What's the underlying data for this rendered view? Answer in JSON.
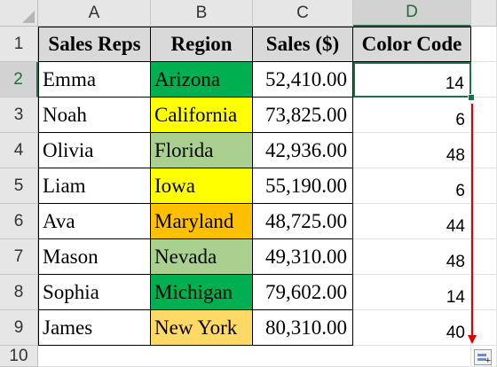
{
  "columns": [
    "A",
    "B",
    "C",
    "D"
  ],
  "rows": [
    "1",
    "2",
    "3",
    "4",
    "5",
    "6",
    "7",
    "8",
    "9",
    "10"
  ],
  "headers": [
    "Sales Reps",
    "Region",
    "Sales ($)",
    "Color Code"
  ],
  "records": [
    {
      "rep": "Emma",
      "region": "Arizona",
      "sales": "52,410.00",
      "code": "14",
      "color": "#00b050"
    },
    {
      "rep": "Noah",
      "region": "California",
      "sales": "73,825.00",
      "code": "6",
      "color": "#ffff00"
    },
    {
      "rep": "Olivia",
      "region": "Florida",
      "sales": "42,936.00",
      "code": "48",
      "color": "#a9d08e"
    },
    {
      "rep": "Liam",
      "region": "Iowa",
      "sales": "55,190.00",
      "code": "6",
      "color": "#ffff00"
    },
    {
      "rep": "Ava",
      "region": "Maryland",
      "sales": "48,725.00",
      "code": "44",
      "color": "#ffc000"
    },
    {
      "rep": "Mason",
      "region": "Nevada",
      "sales": "49,310.00",
      "code": "48",
      "color": "#a9d08e"
    },
    {
      "rep": "Sophia",
      "region": "Michigan",
      "sales": "79,602.00",
      "code": "14",
      "color": "#00b050"
    },
    {
      "rep": "James",
      "region": "New York",
      "sales": "80,310.00",
      "code": "40",
      "color": "#ffd966"
    }
  ],
  "selection": {
    "active_cell": "D2",
    "fill_range": "D2:D9"
  },
  "colors": {
    "header_fill": "#d9d9d9",
    "selection": "#1e7145",
    "arrow": "#e00000"
  }
}
